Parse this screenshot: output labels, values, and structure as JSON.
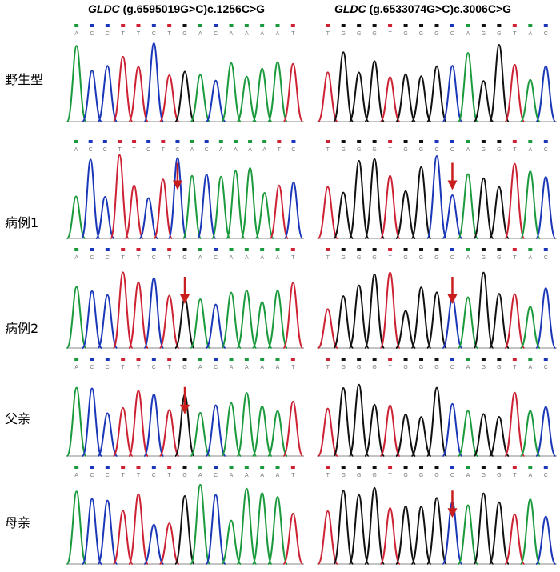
{
  "titles": {
    "left_gene": "GLDC",
    "left_variant": "(g.6595019G>C)c.1256C>G",
    "right_gene": "GLDC",
    "right_variant": "(g.6533074G>C)c.3006C>G"
  },
  "rows": [
    {
      "label": "野生型",
      "left_seq": "ACCTTCTGACAAAAT",
      "right_seq": "TGGGTGGGCAGGTAC",
      "arrow": false,
      "right_arrow": false
    },
    {
      "label": "病例1",
      "left_seq": "ACCTTCTCACAAAATC",
      "right_seq": "TGGGTGGCCAGGTAC",
      "arrow": true,
      "right_arrow": true
    },
    {
      "label": "病例2",
      "left_seq": "ACCTTCTGACAAAAT",
      "right_seq": "TGGGTGGGCAGGTAC",
      "arrow": true,
      "right_arrow": true
    },
    {
      "label": "父亲",
      "left_seq": "ACCTTCTGACAAAAT",
      "right_seq": "TGGGTGGGCAGGTAC",
      "arrow": true,
      "right_arrow": false
    },
    {
      "label": "母亲",
      "left_seq": "ACCTTCTGACAAAAT",
      "right_seq": "TGGGTGGGCAGGTAC",
      "arrow": false,
      "right_arrow": true
    }
  ],
  "colors": {
    "A": "#1a9a3c",
    "C": "#1a37b8",
    "G": "#111111",
    "T": "#cc2233",
    "arrow": "#c81e1e"
  }
}
